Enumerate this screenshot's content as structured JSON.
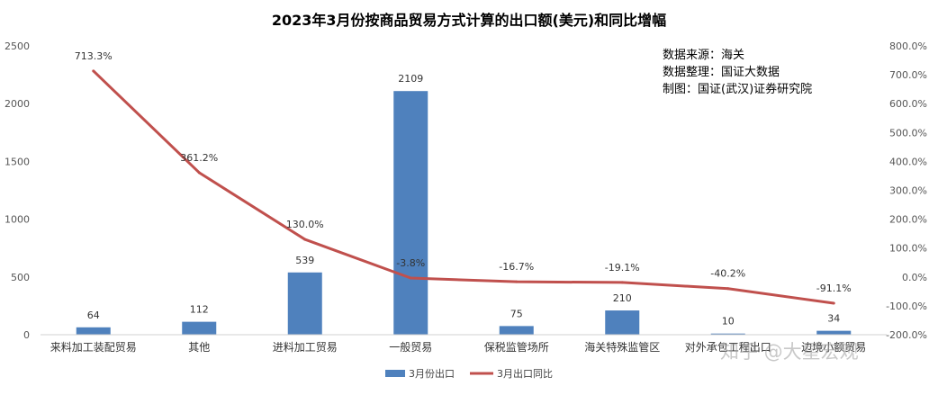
{
  "chart_data": {
    "type": "bar+line",
    "title": "2023年3月份按商品贸易方式计算的出口额(美元)和同比增幅",
    "categories": [
      "来料加工装配贸易",
      "其他",
      "进料加工贸易",
      "一般贸易",
      "保税监管场所",
      "海关特殊监管区",
      "对外承包工程出口",
      "边境小额贸易"
    ],
    "series": [
      {
        "name": "3月份出口",
        "type": "bar",
        "axis": "left",
        "color": "#4F81BD",
        "values": [
          64,
          112,
          539,
          2109,
          75,
          210,
          10,
          34
        ]
      },
      {
        "name": "3月出口同比",
        "type": "line",
        "axis": "right",
        "color": "#C0504D",
        "values": [
          713.3,
          361.2,
          130.0,
          -3.8,
          -16.7,
          -19.1,
          -40.2,
          -91.1
        ]
      }
    ],
    "y_left": {
      "min": 0,
      "max": 2500,
      "ticks": [
        0,
        500,
        1000,
        1500,
        2000,
        2500
      ]
    },
    "y_right": {
      "min": -200,
      "max": 800,
      "ticks": [
        -200,
        -100,
        0,
        100,
        200,
        300,
        400,
        500,
        600,
        700,
        800
      ],
      "format": "percent"
    },
    "bar_labels": [
      "64",
      "112",
      "539",
      "2109",
      "75",
      "210",
      "10",
      "34"
    ],
    "line_labels": [
      "713.3%",
      "361.2%",
      "130.0%",
      "-3.8%",
      "-16.7%",
      "-19.1%",
      "-40.2%",
      "-91.1%"
    ],
    "grid": false,
    "legend_position": "bottom",
    "source_notes": [
      "数据来源：海关",
      "数据整理：国证大数据",
      "制图：国证(武汉)证券研究院"
    ],
    "watermark": "知乎 @大星宏观"
  }
}
